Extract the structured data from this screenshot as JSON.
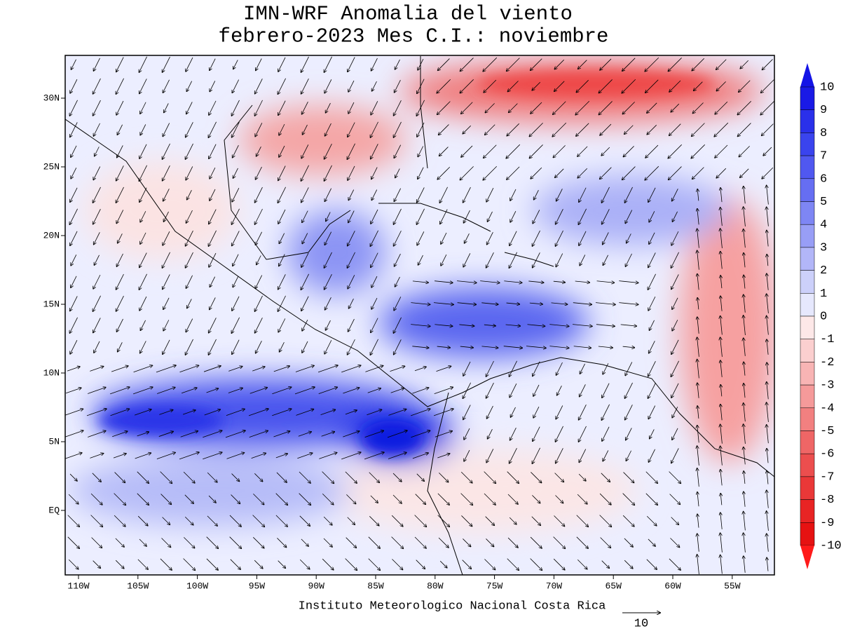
{
  "title": [
    "IMN-WRF Anomalia del viento",
    "febrero-2023 Mes C.I.: noviembre"
  ],
  "map": {
    "lon_labels": [
      "110W",
      "105W",
      "100W",
      "95W",
      "90W",
      "85W",
      "80W",
      "75W",
      "70W",
      "65W",
      "60W",
      "55W"
    ],
    "lat_labels": [
      "30N",
      "25N",
      "20N",
      "15N",
      "10N",
      "5N",
      "EQ"
    ]
  },
  "colorbar": {
    "labels": [
      "10",
      "9",
      "8",
      "7",
      "6",
      "5",
      "4",
      "3",
      "2",
      "1",
      "0",
      "-1",
      "-2",
      "-3",
      "-4",
      "-5",
      "-6",
      "-7",
      "-8",
      "-9",
      "-10"
    ]
  },
  "footer": "Instituto Meteorologico Nacional Costa Rica",
  "vector_reference": "10"
}
